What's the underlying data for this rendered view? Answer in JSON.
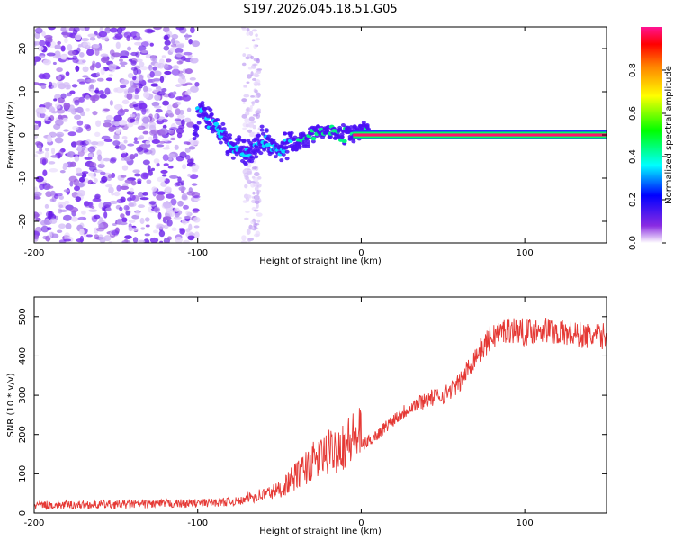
{
  "title": "S197.2026.045.18.51.G05",
  "chart_data": [
    {
      "type": "heatmap",
      "xlabel": "Height of straight line (km)",
      "ylabel": "Frequency (Hz)",
      "xlim": [
        -200,
        150
      ],
      "ylim": [
        -25,
        25
      ],
      "xticks": [
        -200,
        -100,
        0,
        100
      ],
      "yticks": [
        -20,
        -10,
        0,
        10,
        20
      ],
      "colorbar": {
        "label": "Normalized spectral amplitude",
        "range": [
          0.0,
          1.0
        ],
        "ticks": [
          0.0,
          0.2,
          0.4,
          0.6,
          0.8
        ],
        "tick_labels": [
          "0.0",
          "0.2",
          "0.4",
          "0.6",
          "0.8"
        ]
      },
      "ridge": [
        {
          "x": -100,
          "freq": 6
        },
        {
          "x": -90,
          "freq": 2
        },
        {
          "x": -80,
          "freq": -2
        },
        {
          "x": -70,
          "freq": -4
        },
        {
          "x": -60,
          "freq": -1
        },
        {
          "x": -50,
          "freq": -3
        },
        {
          "x": -40,
          "freq": -2
        },
        {
          "x": -30,
          "freq": 0
        },
        {
          "x": -20,
          "freq": 1
        },
        {
          "x": -10,
          "freq": 0
        },
        {
          "x": 0,
          "freq": 1
        },
        {
          "x": 10,
          "freq": 0
        },
        {
          "x": 150,
          "freq": 0
        }
      ]
    },
    {
      "type": "line",
      "xlabel": "Height of straight line (km)",
      "ylabel": "SNR (10 * v/v)",
      "xlim": [
        -200,
        150
      ],
      "ylim": [
        0,
        550
      ],
      "xticks": [
        -200,
        -100,
        0,
        100
      ],
      "yticks": [
        0,
        100,
        200,
        300,
        400,
        500
      ],
      "color": "#e53935",
      "series": [
        {
          "name": "SNR",
          "x": [
            -200,
            -150,
            -100,
            -75,
            -60,
            -50,
            -40,
            -30,
            -20,
            -10,
            0,
            10,
            20,
            30,
            40,
            50,
            60,
            70,
            80,
            90,
            100,
            110,
            120,
            130,
            140,
            150
          ],
          "values": [
            20,
            22,
            25,
            30,
            40,
            50,
            80,
            110,
            130,
            150,
            170,
            200,
            240,
            270,
            290,
            300,
            330,
            400,
            450,
            470,
            460,
            470,
            460,
            455,
            450,
            450
          ]
        }
      ]
    }
  ]
}
